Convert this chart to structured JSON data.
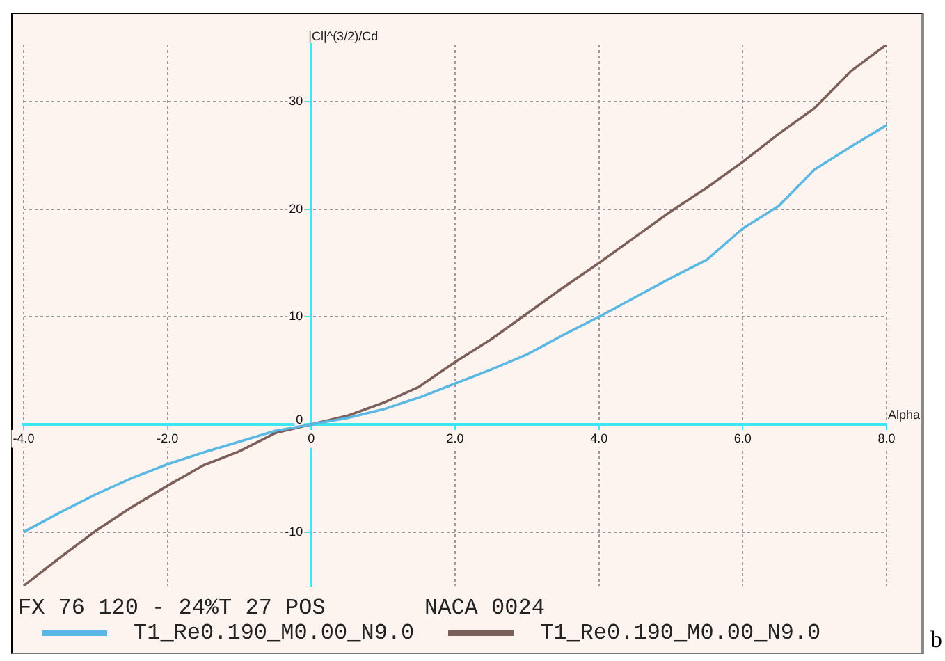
{
  "chart_data": {
    "type": "line",
    "xlabel": "Alpha",
    "ylabel": "|Cl|^(3/2)/Cd",
    "x": [
      -4,
      -3.5,
      -3,
      -2.5,
      -2,
      -1.5,
      -1,
      -0.5,
      0,
      0.5,
      1,
      1.5,
      2,
      2.5,
      3,
      3.5,
      4,
      4.5,
      5,
      5.5,
      6,
      6.5,
      7,
      7.5,
      8
    ],
    "series": [
      {
        "name": "T1_Re0.190_M0.00_N9.0",
        "color": "#5bb8e2",
        "values": [
          -10.0,
          -8.2,
          -6.5,
          -5.0,
          -3.7,
          -2.6,
          -1.6,
          -0.6,
          0,
          0.6,
          1.4,
          2.5,
          3.8,
          5.1,
          6.5,
          8.3,
          10.0,
          11.8,
          13.6,
          15.3,
          18.2,
          20.3,
          23.7,
          25.8,
          27.8
        ]
      },
      {
        "name": "T1_Re0.190_M0.00_N9.0",
        "color": "#7d5f5a",
        "values": [
          -15.0,
          -12.4,
          -9.9,
          -7.7,
          -5.7,
          -3.8,
          -2.5,
          -0.8,
          0,
          0.8,
          2.0,
          3.5,
          5.8,
          7.9,
          10.3,
          12.7,
          15.0,
          17.4,
          19.8,
          22.0,
          24.4,
          27.0,
          29.4,
          32.8,
          35.3
        ]
      }
    ],
    "xlim": [
      -4,
      8
    ],
    "ylim": [
      -15,
      35.3
    ],
    "xticks": [
      {
        "value": -4,
        "label": "-4.0"
      },
      {
        "value": -2,
        "label": "-2.0"
      },
      0,
      {
        "value": 2,
        "label": "2.0"
      },
      {
        "value": 4,
        "label": "4.0"
      },
      {
        "value": 6,
        "label": "6.0"
      },
      {
        "value": 8,
        "label": "8.0"
      }
    ],
    "yticks": [
      -10,
      0,
      10,
      20,
      30
    ],
    "grid": true,
    "legend": "bottom",
    "marker": "none",
    "annotations": [
      "FX 76 120 - 24%T 27 POS",
      "NACA 0024",
      "b"
    ]
  }
}
